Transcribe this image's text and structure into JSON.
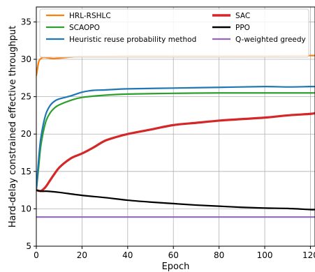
{
  "chart_data": {
    "type": "line",
    "title": "",
    "xlabel": "Epoch",
    "ylabel": "Hard-delay constrained effective throughput",
    "xlim": [
      0,
      122
    ],
    "ylim": [
      5,
      37
    ],
    "xticks": [
      0,
      20,
      40,
      60,
      80,
      100,
      120
    ],
    "xtick_labels": [
      "0",
      "20",
      "40",
      "60",
      "80",
      "100",
      "120"
    ],
    "yticks": [
      5,
      10,
      15,
      20,
      25,
      30,
      35
    ],
    "ytick_labels": [
      "5",
      "10",
      "15",
      "20",
      "25",
      "30",
      "35"
    ],
    "grid": true,
    "legend_position": "top",
    "series": [
      {
        "name": "HRL-RSHLC",
        "color": "#ff7f0e",
        "x": [
          0,
          1,
          2,
          3,
          5,
          7,
          10,
          15,
          20,
          30,
          40,
          60,
          80,
          100,
          120,
          122
        ],
        "y": [
          27.8,
          29.6,
          30.1,
          30.25,
          30.2,
          30.1,
          30.15,
          30.3,
          30.4,
          30.4,
          30.45,
          30.45,
          30.45,
          30.45,
          30.5,
          30.5
        ]
      },
      {
        "name": "SCAOPO",
        "color": "#2ca02c",
        "x": [
          0,
          1,
          2,
          4,
          6,
          8,
          10,
          15,
          20,
          30,
          40,
          60,
          80,
          100,
          120,
          122
        ],
        "y": [
          12.5,
          15.5,
          18.5,
          21.5,
          22.8,
          23.5,
          23.9,
          24.5,
          24.9,
          25.2,
          25.35,
          25.45,
          25.5,
          25.5,
          25.5,
          25.5
        ]
      },
      {
        "name": "Heuristic reuse probability method",
        "color": "#1f77b4",
        "x": [
          0,
          1,
          2,
          4,
          6,
          8,
          10,
          15,
          20,
          25,
          30,
          40,
          60,
          80,
          100,
          110,
          120,
          122
        ],
        "y": [
          12.5,
          16.5,
          19.5,
          22.5,
          23.8,
          24.4,
          24.7,
          25.1,
          25.6,
          25.85,
          25.9,
          26.05,
          26.15,
          26.25,
          26.35,
          26.3,
          26.35,
          26.35
        ]
      },
      {
        "name": "SAC",
        "color": "#d62728",
        "x": [
          0,
          2,
          4,
          6,
          8,
          10,
          13,
          16,
          20,
          25,
          30,
          35,
          40,
          50,
          60,
          70,
          80,
          90,
          100,
          110,
          120,
          122
        ],
        "y": [
          12.5,
          12.4,
          12.9,
          13.8,
          14.7,
          15.5,
          16.3,
          16.9,
          17.4,
          18.2,
          19.1,
          19.6,
          20.0,
          20.6,
          21.2,
          21.5,
          21.8,
          22.0,
          22.2,
          22.5,
          22.7,
          22.8
        ]
      },
      {
        "name": "PPO",
        "color": "#000000",
        "x": [
          0,
          2,
          5,
          10,
          20,
          30,
          40,
          50,
          60,
          70,
          80,
          90,
          100,
          110,
          120,
          122
        ],
        "y": [
          12.5,
          12.35,
          12.35,
          12.2,
          11.8,
          11.5,
          11.15,
          10.9,
          10.7,
          10.5,
          10.35,
          10.2,
          10.1,
          10.05,
          9.9,
          9.9
        ]
      },
      {
        "name": "Q-weighted greedy",
        "color": "#9467bd",
        "x": [
          0,
          122
        ],
        "y": [
          8.9,
          8.9
        ]
      }
    ]
  }
}
